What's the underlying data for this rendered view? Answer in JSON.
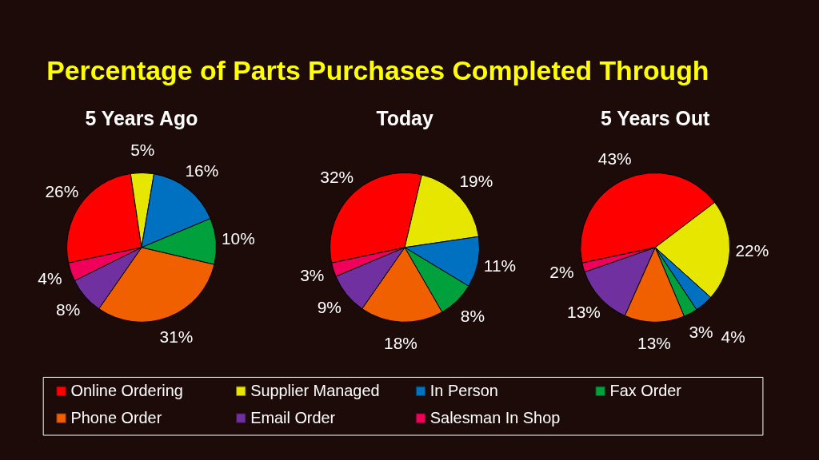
{
  "chart_data": [
    {
      "type": "pie",
      "title": "Percentage of Parts Purchases Completed Through",
      "subtitle": "5 Years Ago",
      "categories": [
        "Online Ordering",
        "Supplier Managed",
        "In Person",
        "Fax Order",
        "Phone Order",
        "Email Order",
        "Salesman In Shop"
      ],
      "values": [
        26,
        5,
        16,
        10,
        31,
        8,
        4
      ],
      "colors": [
        "#ff0000",
        "#e6e600",
        "#0070c0",
        "#00a03c",
        "#f06000",
        "#7030a0",
        "#f0005a"
      ],
      "value_labels": [
        "26%",
        "5%",
        "16%",
        "10%",
        "31%",
        "8%",
        "4%"
      ],
      "legend": "bottom"
    },
    {
      "type": "pie",
      "subtitle": "Today",
      "values": [
        32,
        19,
        11,
        8,
        18,
        9,
        3
      ],
      "colors": [
        "#ff0000",
        "#e6e600",
        "#0070c0",
        "#00a03c",
        "#f06000",
        "#7030a0",
        "#f0005a"
      ],
      "value_labels": [
        "32%",
        "19%",
        "11%",
        "8%",
        "18%",
        "9%",
        "3%"
      ]
    },
    {
      "type": "pie",
      "subtitle": "5 Years Out",
      "values": [
        43,
        22,
        4,
        3,
        13,
        13,
        2
      ],
      "colors": [
        "#ff0000",
        "#e6e600",
        "#0070c0",
        "#00a03c",
        "#f06000",
        "#7030a0",
        "#f0005a"
      ],
      "value_labels": [
        "43%",
        "22%",
        "4%",
        "3%",
        "13%",
        "13%",
        "2%"
      ]
    }
  ]
}
